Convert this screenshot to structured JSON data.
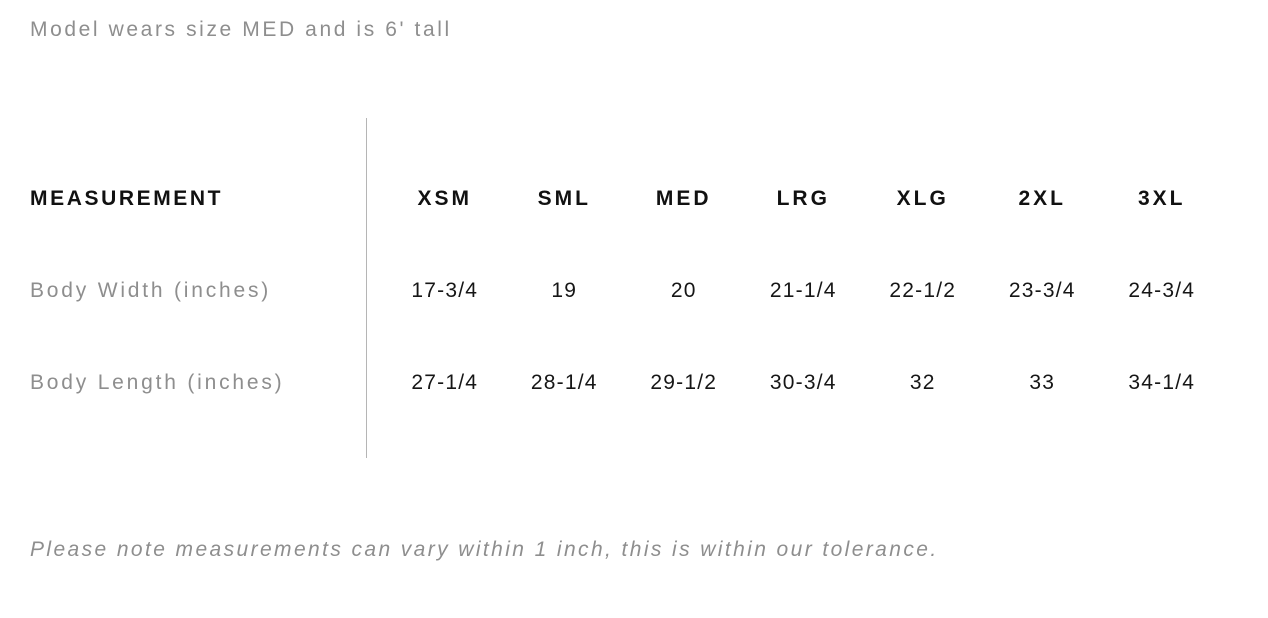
{
  "notes": {
    "model": "Model wears size MED and is 6' tall",
    "tolerance": "Please note measurements can vary within 1 inch, this is within our tolerance."
  },
  "chart_data": {
    "type": "table",
    "columns": [
      "MEASUREMENT",
      "XSM",
      "SML",
      "MED",
      "LRG",
      "XLG",
      "2XL",
      "3XL"
    ],
    "rows": [
      {
        "label": "Body Width (inches)",
        "values": [
          "17-3/4",
          "19",
          "20",
          "21-1/4",
          "22-1/2",
          "23-3/4",
          "24-3/4"
        ]
      },
      {
        "label": "Body Length (inches)",
        "values": [
          "27-1/4",
          "28-1/4",
          "29-1/2",
          "30-3/4",
          "32",
          "33",
          "34-1/4"
        ]
      }
    ]
  },
  "colors": {
    "text_dark": "#111111",
    "text_gray": "#8e8e8e",
    "divider": "#b5b5b5",
    "background": "#ffffff"
  }
}
